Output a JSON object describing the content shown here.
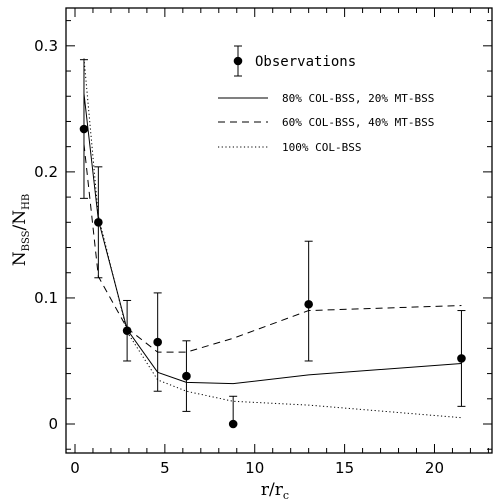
{
  "chart_data": {
    "type": "line",
    "xlabel": "r/r",
    "xlabel_sub": "c",
    "ylabel": "N",
    "ylabel_sub1": "BSS",
    "ylabel_mid": "/N",
    "ylabel_sub2": "HB",
    "xlim": [
      -0.5,
      23.2
    ],
    "ylim": [
      -0.023,
      0.33
    ],
    "xticks": [
      0,
      5,
      10,
      15,
      20
    ],
    "xtick_labels": [
      "0",
      "5",
      "10",
      "15",
      "20"
    ],
    "yticks": [
      0,
      0.1,
      0.2,
      0.3
    ],
    "ytick_labels": [
      "0",
      "0.1",
      "0.2",
      "0.3"
    ],
    "observations": {
      "name": "Observations",
      "x": [
        0.5,
        1.3,
        2.9,
        4.6,
        6.2,
        8.8,
        13.0,
        21.5
      ],
      "y": [
        0.234,
        0.16,
        0.074,
        0.065,
        0.038,
        0.0,
        0.095,
        0.052
      ],
      "err_low": [
        0.055,
        0.044,
        0.024,
        0.039,
        0.028,
        0.0,
        0.045,
        0.038
      ],
      "err_high": [
        0.055,
        0.044,
        0.024,
        0.039,
        0.028,
        0.022,
        0.05,
        0.038
      ]
    },
    "series": [
      {
        "name": "80% COL-BSS, 20% MT-BSS",
        "style": "solid",
        "x": [
          0.5,
          1.3,
          2.9,
          4.6,
          6.2,
          8.8,
          13.0,
          21.5
        ],
        "y": [
          0.262,
          0.162,
          0.075,
          0.041,
          0.033,
          0.032,
          0.039,
          0.048
        ]
      },
      {
        "name": "60% COL-BSS, 40% MT-BSS",
        "style": "dashed",
        "x": [
          0.5,
          1.3,
          2.9,
          4.6,
          6.2,
          8.8,
          13.0,
          21.5
        ],
        "y": [
          0.222,
          0.117,
          0.076,
          0.057,
          0.057,
          0.068,
          0.09,
          0.094
        ]
      },
      {
        "name": "100% COL-BSS",
        "style": "dotted",
        "x": [
          0.5,
          1.3,
          2.9,
          4.6,
          6.2,
          8.8,
          13.0,
          21.5
        ],
        "y": [
          0.29,
          0.165,
          0.073,
          0.035,
          0.026,
          0.018,
          0.015,
          0.005
        ]
      }
    ]
  }
}
